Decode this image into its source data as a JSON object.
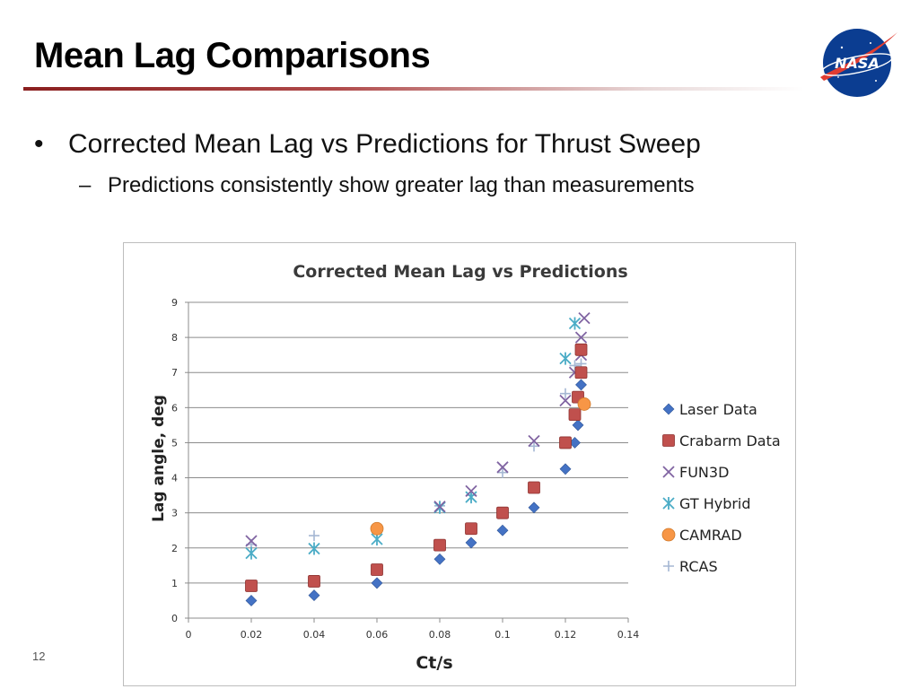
{
  "slide": {
    "title": "Mean Lag Comparisons",
    "bullet": "Corrected Mean Lag vs Predictions for Thrust Sweep",
    "sub_bullet": "Predictions consistently show greater lag than measurements",
    "bullet_mark": "•",
    "sub_bullet_mark": "–",
    "page_number": "12",
    "logo_text": "NASA"
  },
  "colors": {
    "accent_rule": "#8a1f1f",
    "logo_blue": "#0b3d91",
    "logo_red": "#e03c31"
  },
  "chart_data": {
    "type": "scatter",
    "title": "Corrected Mean Lag vs Predictions",
    "xlabel": "Ct/s",
    "ylabel": "Lag angle, deg",
    "xlim": [
      0,
      0.14
    ],
    "ylim": [
      0,
      9
    ],
    "x_ticks": [
      "0",
      "0.02",
      "0.04",
      "0.06",
      "0.08",
      "0.1",
      "0.12",
      "0.14"
    ],
    "y_ticks": [
      "0",
      "1",
      "2",
      "3",
      "4",
      "5",
      "6",
      "7",
      "8",
      "9"
    ],
    "grid": "horizontal",
    "legend_position": "right",
    "series": [
      {
        "name": "Laser Data",
        "marker": "diamond",
        "color": "#4472c4",
        "points": [
          [
            0.02,
            0.5
          ],
          [
            0.04,
            0.65
          ],
          [
            0.06,
            1.0
          ],
          [
            0.08,
            1.68
          ],
          [
            0.09,
            2.15
          ],
          [
            0.1,
            2.5
          ],
          [
            0.11,
            3.15
          ],
          [
            0.12,
            4.25
          ],
          [
            0.123,
            5.0
          ],
          [
            0.124,
            5.5
          ],
          [
            0.125,
            6.65
          ]
        ]
      },
      {
        "name": "Crabarm Data",
        "marker": "square",
        "color": "#c0504d",
        "points": [
          [
            0.02,
            0.92
          ],
          [
            0.04,
            1.05
          ],
          [
            0.06,
            1.38
          ],
          [
            0.08,
            2.08
          ],
          [
            0.09,
            2.55
          ],
          [
            0.1,
            3.0
          ],
          [
            0.11,
            3.72
          ],
          [
            0.12,
            5.0
          ],
          [
            0.123,
            5.8
          ],
          [
            0.124,
            6.3
          ],
          [
            0.125,
            7.0
          ],
          [
            0.125,
            7.65
          ]
        ]
      },
      {
        "name": "FUN3D",
        "marker": "x",
        "color": "#8064a2",
        "points": [
          [
            0.02,
            2.2
          ],
          [
            0.08,
            3.18
          ],
          [
            0.09,
            3.62
          ],
          [
            0.1,
            4.3
          ],
          [
            0.11,
            5.05
          ],
          [
            0.12,
            6.2
          ],
          [
            0.123,
            7.0
          ],
          [
            0.125,
            7.5
          ],
          [
            0.125,
            8.0
          ],
          [
            0.126,
            8.55
          ]
        ]
      },
      {
        "name": "GT Hybrid",
        "marker": "star",
        "color": "#4bacc6",
        "points": [
          [
            0.02,
            1.85
          ],
          [
            0.04,
            1.98
          ],
          [
            0.06,
            2.25
          ],
          [
            0.08,
            3.15
          ],
          [
            0.09,
            3.45
          ],
          [
            0.12,
            7.4
          ],
          [
            0.123,
            8.4
          ]
        ]
      },
      {
        "name": "CAMRAD",
        "marker": "circle",
        "color": "#f79646",
        "points": [
          [
            0.06,
            2.55
          ],
          [
            0.126,
            6.1
          ]
        ]
      },
      {
        "name": "RCAS",
        "marker": "plus",
        "color": "#a5b7d3",
        "points": [
          [
            0.02,
            2.1
          ],
          [
            0.04,
            2.35
          ],
          [
            0.06,
            2.45
          ],
          [
            0.08,
            3.2
          ],
          [
            0.09,
            3.5
          ],
          [
            0.1,
            4.15
          ],
          [
            0.11,
            4.9
          ],
          [
            0.12,
            6.4
          ],
          [
            0.123,
            7.2
          ],
          [
            0.125,
            7.25
          ]
        ]
      }
    ]
  }
}
